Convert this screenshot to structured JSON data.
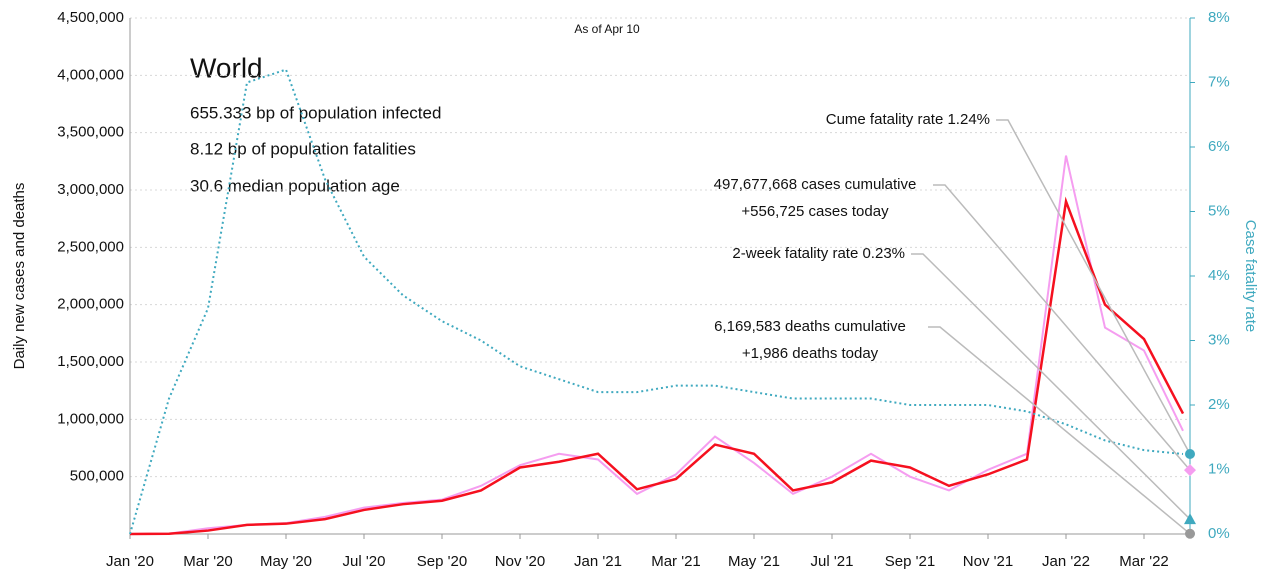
{
  "chart_data": {
    "type": "line",
    "subtitle": "As of Apr 10",
    "title": "World",
    "info": [
      "655.333 bp of population infected",
      "8.12 bp of population fatalities",
      "30.6 median population age"
    ],
    "ylabel": "Daily new cases and deaths",
    "y2label": "Case fatality rate",
    "categories": [
      "Jan '20",
      null,
      "Mar '20",
      null,
      "May '20",
      null,
      "Jul '20",
      null,
      "Sep '20",
      null,
      "Nov '20",
      null,
      "Jan '21",
      null,
      "Mar '21",
      null,
      "May '21",
      null,
      "Jul '21",
      null,
      "Sep '21",
      null,
      "Nov '21",
      null,
      "Jan '22",
      null,
      "Mar '22",
      null
    ],
    "ylim": [
      0,
      4500000
    ],
    "yticks": [
      {
        "value": 500000,
        "label": "500,000"
      },
      {
        "value": 1000000,
        "label": "1,000,000"
      },
      {
        "value": 1500000,
        "label": "1,500,000"
      },
      {
        "value": 2000000,
        "label": "2,000,000"
      },
      {
        "value": 2500000,
        "label": "2,500,000"
      },
      {
        "value": 3000000,
        "label": "3,000,000"
      },
      {
        "value": 3500000,
        "label": "3,500,000"
      },
      {
        "value": 4000000,
        "label": "4,000,000"
      },
      {
        "value": 4500000,
        "label": "4,500,000"
      }
    ],
    "y2lim": [
      0,
      8
    ],
    "y2ticks": [
      {
        "value": 0,
        "label": "0%"
      },
      {
        "value": 1,
        "label": "1%"
      },
      {
        "value": 2,
        "label": "2%"
      },
      {
        "value": 3,
        "label": "3%"
      },
      {
        "value": 4,
        "label": "4%"
      },
      {
        "value": 5,
        "label": "5%"
      },
      {
        "value": 6,
        "label": "6%"
      },
      {
        "value": 7,
        "label": "7%"
      },
      {
        "value": 8,
        "label": "8%"
      }
    ],
    "grid": true,
    "series": [
      {
        "color": "#f59df0",
        "values": [
          0,
          3000,
          50000,
          80000,
          95000,
          150000,
          230000,
          270000,
          300000,
          420000,
          600000,
          700000,
          650000,
          350000,
          520000,
          850000,
          620000,
          350000,
          500000,
          700000,
          500000,
          380000,
          560000,
          700000,
          3300000,
          1800000,
          1600000,
          900000
        ]
      },
      {
        "color": "#f5101f",
        "values": [
          0,
          2000,
          30000,
          80000,
          90000,
          130000,
          210000,
          260000,
          290000,
          380000,
          580000,
          630000,
          700000,
          390000,
          480000,
          780000,
          700000,
          380000,
          450000,
          640000,
          580000,
          420000,
          520000,
          650000,
          2900000,
          2000000,
          1700000,
          1050000
        ]
      },
      {
        "color": "#3fa9bf",
        "axis": "y2",
        "values": [
          0,
          2.1,
          3.5,
          7.0,
          7.2,
          5.5,
          4.3,
          3.7,
          3.3,
          3.0,
          2.6,
          2.4,
          2.2,
          2.2,
          2.3,
          2.3,
          2.2,
          2.1,
          2.1,
          2.1,
          2.0,
          2.0,
          2.0,
          1.9,
          1.7,
          1.45,
          1.3,
          1.24
        ]
      }
    ],
    "annotations": [
      {
        "lines": [
          "Cume fatality rate 1.24%"
        ],
        "value": 1.24,
        "axis": "y2",
        "color": "#3fa9bf",
        "marker": "circle"
      },
      {
        "lines": [
          "497,677,668 cases cumulative",
          "+556,725 cases today"
        ],
        "value": 556725,
        "color": "#f59df0",
        "marker": "diamond"
      },
      {
        "lines": [
          "2-week fatality rate 0.23%"
        ],
        "value": 0.23,
        "axis": "y2",
        "color": "#3fa9bf",
        "marker": "triangle"
      },
      {
        "lines": [
          "6,169,583 deaths cumulative",
          "+1,986 deaths today"
        ],
        "value": 1986,
        "color": "#999999",
        "marker": "circle"
      }
    ]
  }
}
